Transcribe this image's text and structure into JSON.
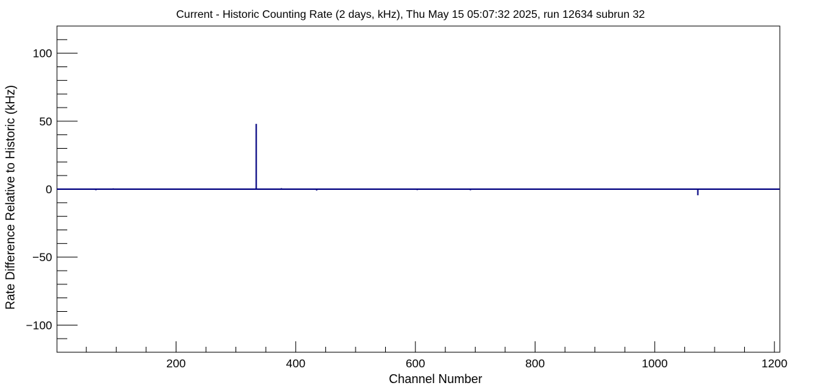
{
  "chart_data": {
    "type": "bar",
    "title": "Current - Historic Counting Rate (2 days, kHz), Thu May 15 05:07:32 2025, run 12634 subrun 32",
    "xlabel": "Channel Number",
    "ylabel": "Rate Difference Relative to Historic (kHz)",
    "xlim": [
      1,
      1209
    ],
    "ylim": [
      -120,
      120
    ],
    "x_major_ticks": [
      200,
      400,
      600,
      800,
      1000,
      1200
    ],
    "y_major_ticks": [
      -100,
      -50,
      0,
      50,
      100
    ],
    "x_tick_labels": [
      "200",
      "400",
      "600",
      "800",
      "1000",
      "1200"
    ],
    "y_tick_labels": [
      "−100",
      "−50",
      "0",
      "50",
      "100"
    ],
    "grid": false,
    "line_color": "#000080",
    "series": [
      {
        "baseline": 0,
        "spikes": [
          {
            "x": 66,
            "y": -0.8
          },
          {
            "x": 95,
            "y": 0.6
          },
          {
            "x": 126,
            "y": 0.5
          },
          {
            "x": 334,
            "y": 48
          },
          {
            "x": 376,
            "y": 0.7
          },
          {
            "x": 435,
            "y": -1.0
          },
          {
            "x": 437,
            "y": 0.5
          },
          {
            "x": 603,
            "y": -0.7
          },
          {
            "x": 617,
            "y": 0.5
          },
          {
            "x": 692,
            "y": -0.8
          },
          {
            "x": 1072,
            "y": -4.5
          }
        ]
      }
    ]
  }
}
